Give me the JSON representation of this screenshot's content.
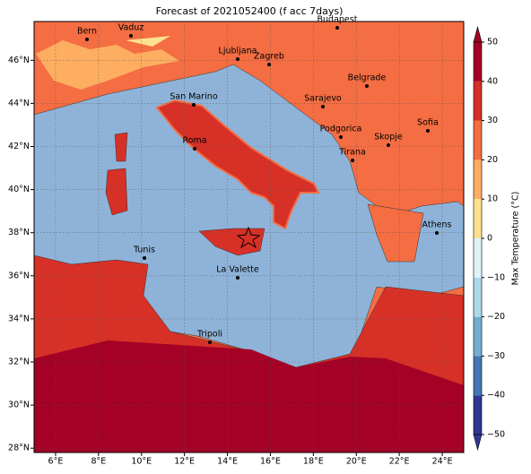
{
  "chart_data": {
    "type": "map",
    "title": "Forecast of 2021052400 (f acc 7days)",
    "xlim": [
      5,
      25
    ],
    "ylim": [
      27.8,
      47.8
    ],
    "grid": true,
    "xticks": [
      {
        "value": 6,
        "label": "6°E"
      },
      {
        "value": 8,
        "label": "8°E"
      },
      {
        "value": 10,
        "label": "10°E"
      },
      {
        "value": 12,
        "label": "12°E"
      },
      {
        "value": 14,
        "label": "14°E"
      },
      {
        "value": 16,
        "label": "16°E"
      },
      {
        "value": 18,
        "label": "18°E"
      },
      {
        "value": 20,
        "label": "20°E"
      },
      {
        "value": 22,
        "label": "22°E"
      },
      {
        "value": 24,
        "label": "24°E"
      }
    ],
    "yticks": [
      {
        "value": 28,
        "label": "28°N"
      },
      {
        "value": 30,
        "label": "30°N"
      },
      {
        "value": 32,
        "label": "32°N"
      },
      {
        "value": 34,
        "label": "34°N"
      },
      {
        "value": 36,
        "label": "36°N"
      },
      {
        "value": 38,
        "label": "38°N"
      },
      {
        "value": 40,
        "label": "40°N"
      },
      {
        "value": 42,
        "label": "42°N"
      },
      {
        "value": 44,
        "label": "44°N"
      },
      {
        "value": 46,
        "label": "46°N"
      }
    ],
    "cities": [
      "Bern",
      "Vaduz",
      "Budapest",
      "Ljubljana",
      "Zagreb",
      "Belgrade",
      "San Marino",
      "Sarajevo",
      "Sofia",
      "Podgorica",
      "Skopje",
      "Roma",
      "Tirana",
      "Athens",
      "Tunis",
      "La Valette",
      "Tripoli"
    ],
    "colorbar": {
      "label": "Max Temperature (°C)",
      "ticks": [
        {
          "value": -50,
          "label": "−50"
        },
        {
          "value": -40,
          "label": "−40"
        },
        {
          "value": -30,
          "label": "−30"
        },
        {
          "value": -20,
          "label": "−20"
        },
        {
          "value": -10,
          "label": "−10"
        },
        0,
        10,
        20,
        30,
        40,
        50
      ],
      "colors": [
        "#313695",
        "#4575b4",
        "#74add1",
        "#abd9e9",
        "#e0f3f8",
        "#fee090",
        "#fdae61",
        "#f46d43",
        "#d73027",
        "#a50026"
      ]
    }
  }
}
